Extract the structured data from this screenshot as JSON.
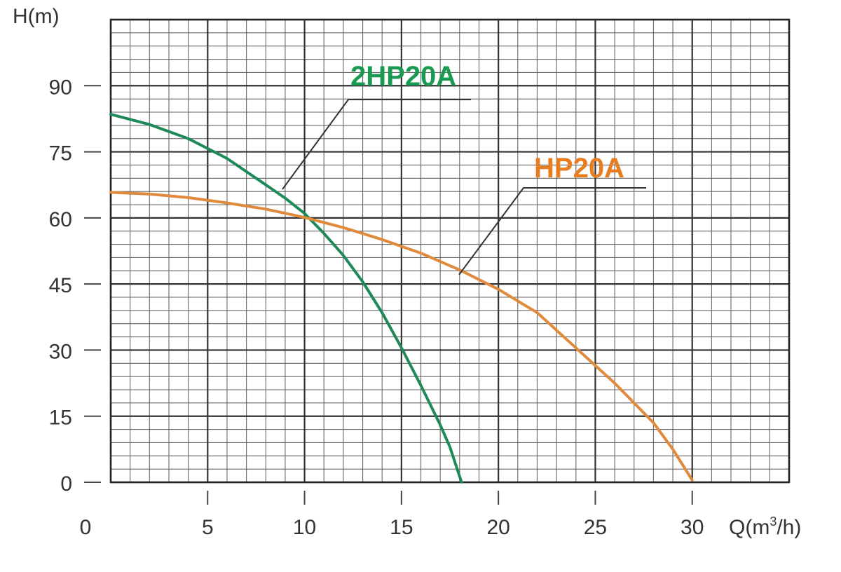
{
  "chart_data": {
    "type": "line",
    "ylabel": "H(m)",
    "xlabel_prefix": "Q(m",
    "xlabel_sup": "3",
    "xlabel_suffix": "/h)",
    "xlim": [
      0,
      35
    ],
    "ylim": [
      0,
      105
    ],
    "x_ticks": [
      "0",
      "5",
      "10",
      "15",
      "20",
      "25",
      "30"
    ],
    "x_tick_values": [
      0,
      5,
      10,
      15,
      20,
      25,
      30
    ],
    "y_ticks": [
      "0",
      "15",
      "30",
      "45",
      "60",
      "75",
      "90"
    ],
    "y_tick_values": [
      0,
      15,
      30,
      45,
      60,
      75,
      90
    ],
    "grid": true,
    "series": [
      {
        "name": "2HP20A",
        "color": "#1e8a5a",
        "label_color": "#1a9a50",
        "x": [
          0,
          2,
          4,
          6,
          8,
          9,
          10,
          11,
          12,
          13,
          14,
          15,
          16,
          17,
          17.5,
          18.1
        ],
        "y": [
          83.5,
          81.2,
          78,
          73.5,
          67.5,
          64.5,
          61,
          56.5,
          51.5,
          45.5,
          38.5,
          30.5,
          22,
          13,
          8,
          0
        ]
      },
      {
        "name": "HP20A",
        "color": "#e08a3c",
        "label_color": "#e87d1f",
        "x": [
          0,
          2,
          4,
          6,
          8,
          10,
          12,
          14,
          16,
          18,
          20,
          22,
          24,
          26,
          28,
          29,
          30
        ],
        "y": [
          65.8,
          65.4,
          64.6,
          63.4,
          62,
          60.1,
          57.8,
          55.1,
          52,
          48.2,
          43.8,
          38.5,
          30.5,
          22.5,
          13.5,
          7.5,
          0.5
        ]
      }
    ]
  }
}
